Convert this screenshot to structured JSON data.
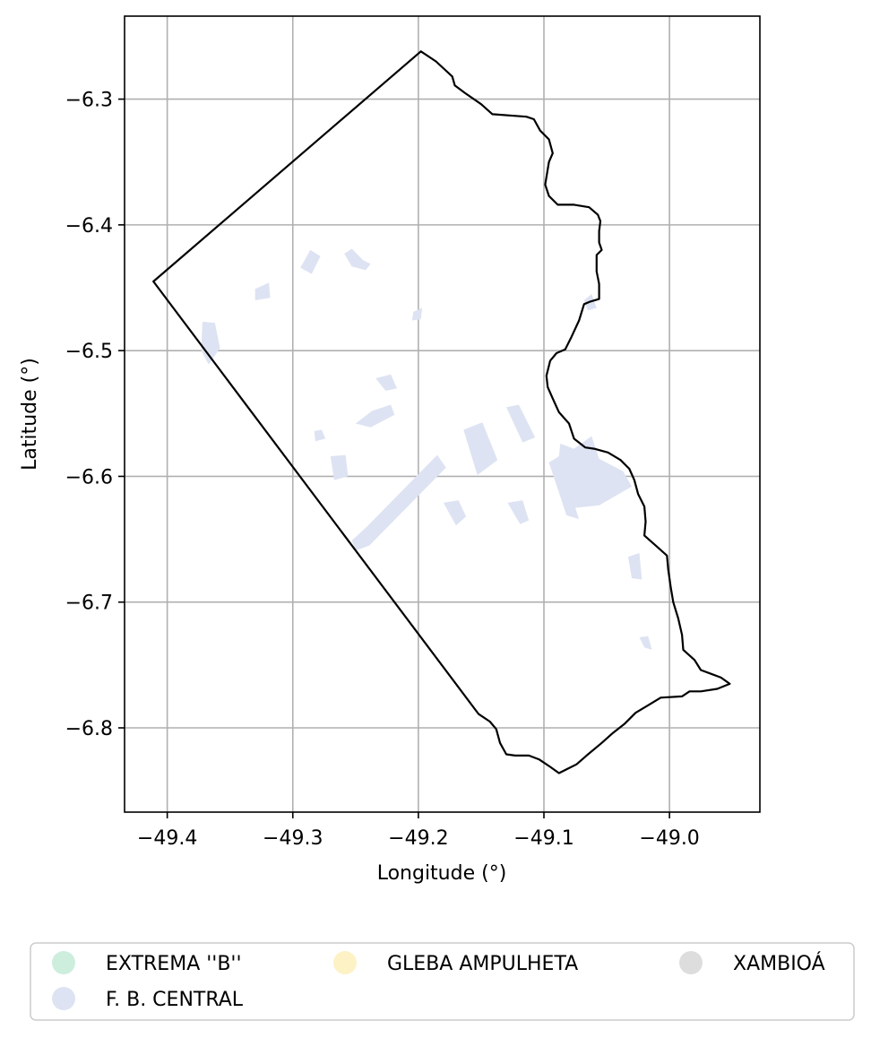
{
  "chart_data": {
    "type": "map",
    "xlabel": "Longitude (°)",
    "ylabel": "Latitude (°)",
    "xlim": [
      -49.434,
      -48.928
    ],
    "ylim": [
      -6.867,
      -6.234
    ],
    "grid": true,
    "x_ticks": [
      -49.4,
      -49.3,
      -49.2,
      -49.1,
      -49.0
    ],
    "x_tick_labels": [
      "−49.4",
      "−49.3",
      "−49.2",
      "−49.1",
      "−49.0"
    ],
    "y_ticks": [
      -6.3,
      -6.4,
      -6.5,
      -6.6,
      -6.7,
      -6.8
    ],
    "y_tick_labels": [
      "−6.3",
      "−6.4",
      "−6.5",
      "−6.6",
      "−6.7",
      "−6.8"
    ],
    "legend_position": "bottom",
    "legend": [
      {
        "label": "EXTREMA ''B''",
        "color": "#cdeedd"
      },
      {
        "label": "F. B. CENTRAL",
        "color": "#dde3f2"
      },
      {
        "label": "GLEBA AMPULHETA",
        "color": "#fdf2c6"
      },
      {
        "label": "XAMBIOÁ",
        "color": "#dddddd"
      }
    ],
    "boundary": {
      "color": "#000000",
      "points": [
        [
          -49.411,
          -6.445
        ],
        [
          -49.198,
          -6.262
        ],
        [
          -49.186,
          -6.27
        ],
        [
          -49.173,
          -6.282
        ],
        [
          -49.171,
          -6.289
        ],
        [
          -49.163,
          -6.295
        ],
        [
          -49.15,
          -6.304
        ],
        [
          -49.141,
          -6.312
        ],
        [
          -49.114,
          -6.314
        ],
        [
          -49.108,
          -6.316
        ],
        [
          -49.103,
          -6.325
        ],
        [
          -49.096,
          -6.332
        ],
        [
          -49.093,
          -6.343
        ],
        [
          -49.096,
          -6.35
        ],
        [
          -49.099,
          -6.368
        ],
        [
          -49.096,
          -6.377
        ],
        [
          -49.089,
          -6.384
        ],
        [
          -49.076,
          -6.384
        ],
        [
          -49.064,
          -6.386
        ],
        [
          -49.057,
          -6.392
        ],
        [
          -49.055,
          -6.397
        ],
        [
          -49.056,
          -6.405
        ],
        [
          -49.056,
          -6.414
        ],
        [
          -49.054,
          -6.42
        ],
        [
          -49.058,
          -6.424
        ],
        [
          -49.058,
          -6.437
        ],
        [
          -49.056,
          -6.447
        ],
        [
          -49.056,
          -6.459
        ],
        [
          -49.063,
          -6.461
        ],
        [
          -49.068,
          -6.463
        ],
        [
          -49.072,
          -6.476
        ],
        [
          -49.078,
          -6.489
        ],
        [
          -49.083,
          -6.499
        ],
        [
          -49.09,
          -6.502
        ],
        [
          -49.095,
          -6.508
        ],
        [
          -49.098,
          -6.52
        ],
        [
          -49.097,
          -6.529
        ],
        [
          -49.093,
          -6.538
        ],
        [
          -49.088,
          -6.549
        ],
        [
          -49.08,
          -6.558
        ],
        [
          -49.076,
          -6.57
        ],
        [
          -49.067,
          -6.577
        ],
        [
          -49.06,
          -6.578
        ],
        [
          -49.049,
          -6.581
        ],
        [
          -49.039,
          -6.587
        ],
        [
          -49.032,
          -6.594
        ],
        [
          -49.028,
          -6.603
        ],
        [
          -49.025,
          -6.614
        ],
        [
          -49.02,
          -6.624
        ],
        [
          -49.019,
          -6.636
        ],
        [
          -49.02,
          -6.647
        ],
        [
          -49.011,
          -6.655
        ],
        [
          -49.002,
          -6.663
        ],
        [
          -49.001,
          -6.674
        ],
        [
          -48.999,
          -6.688
        ],
        [
          -48.997,
          -6.7
        ],
        [
          -48.993,
          -6.713
        ],
        [
          -48.99,
          -6.726
        ],
        [
          -48.989,
          -6.738
        ],
        [
          -48.98,
          -6.746
        ],
        [
          -48.975,
          -6.754
        ],
        [
          -48.967,
          -6.757
        ],
        [
          -48.959,
          -6.76
        ],
        [
          -48.952,
          -6.765
        ],
        [
          -48.962,
          -6.769
        ],
        [
          -48.975,
          -6.771
        ],
        [
          -48.984,
          -6.771
        ],
        [
          -48.99,
          -6.775
        ],
        [
          -49.007,
          -6.776
        ],
        [
          -49.017,
          -6.782
        ],
        [
          -49.027,
          -6.788
        ],
        [
          -49.036,
          -6.797
        ],
        [
          -49.045,
          -6.804
        ],
        [
          -49.054,
          -6.812
        ],
        [
          -49.066,
          -6.822
        ],
        [
          -49.074,
          -6.829
        ],
        [
          -49.088,
          -6.836
        ],
        [
          -49.095,
          -6.831
        ],
        [
          -49.104,
          -6.825
        ],
        [
          -49.112,
          -6.822
        ],
        [
          -49.123,
          -6.822
        ],
        [
          -49.13,
          -6.821
        ],
        [
          -49.135,
          -6.812
        ],
        [
          -49.138,
          -6.801
        ],
        [
          -49.143,
          -6.795
        ],
        [
          -49.152,
          -6.789
        ],
        [
          -49.411,
          -6.445
        ]
      ]
    },
    "regions": {
      "category": "F. B. CENTRAL",
      "color": "#dde3f2",
      "polygons": [
        [
          [
            -49.372,
            -6.477
          ],
          [
            -49.362,
            -6.478
          ],
          [
            -49.358,
            -6.498
          ],
          [
            -49.367,
            -6.511
          ],
          [
            -49.373,
            -6.5
          ]
        ],
        [
          [
            -49.241,
            -6.64
          ],
          [
            -49.185,
            -6.583
          ],
          [
            -49.178,
            -6.593
          ],
          [
            -49.239,
            -6.655
          ],
          [
            -49.25,
            -6.659
          ],
          [
            -49.253,
            -6.651
          ]
        ],
        [
          [
            -49.164,
            -6.563
          ],
          [
            -49.149,
            -6.557
          ],
          [
            -49.137,
            -6.587
          ],
          [
            -49.153,
            -6.599
          ]
        ],
        [
          [
            -49.062,
            -6.568
          ],
          [
            -49.076,
            -6.578
          ],
          [
            -49.087,
            -6.574
          ],
          [
            -49.088,
            -6.584
          ],
          [
            -49.096,
            -6.589
          ],
          [
            -49.093,
            -6.598
          ],
          [
            -49.082,
            -6.631
          ],
          [
            -49.072,
            -6.634
          ],
          [
            -49.075,
            -6.625
          ],
          [
            -49.056,
            -6.623
          ],
          [
            -49.03,
            -6.608
          ],
          [
            -49.037,
            -6.596
          ],
          [
            -49.056,
            -6.586
          ]
        ],
        [
          [
            -49.13,
            -6.545
          ],
          [
            -49.12,
            -6.543
          ],
          [
            -49.107,
            -6.569
          ],
          [
            -49.117,
            -6.573
          ]
        ],
        [
          [
            -49.129,
            -6.621
          ],
          [
            -49.117,
            -6.619
          ],
          [
            -49.112,
            -6.635
          ],
          [
            -49.119,
            -6.638
          ]
        ],
        [
          [
            -49.18,
            -6.621
          ],
          [
            -49.168,
            -6.619
          ],
          [
            -49.162,
            -6.632
          ],
          [
            -49.17,
            -6.639
          ]
        ],
        [
          [
            -49.27,
            -6.584
          ],
          [
            -49.258,
            -6.583
          ],
          [
            -49.256,
            -6.6
          ],
          [
            -49.267,
            -6.603
          ]
        ],
        [
          [
            -49.25,
            -6.558
          ],
          [
            -49.237,
            -6.548
          ],
          [
            -49.222,
            -6.543
          ],
          [
            -49.219,
            -6.551
          ],
          [
            -49.238,
            -6.561
          ]
        ],
        [
          [
            -49.234,
            -6.522
          ],
          [
            -49.222,
            -6.519
          ],
          [
            -49.217,
            -6.53
          ],
          [
            -49.226,
            -6.532
          ]
        ],
        [
          [
            -49.294,
            -6.434
          ],
          [
            -49.286,
            -6.42
          ],
          [
            -49.278,
            -6.425
          ],
          [
            -49.285,
            -6.439
          ]
        ],
        [
          [
            -49.259,
            -6.423
          ],
          [
            -49.253,
            -6.419
          ],
          [
            -49.244,
            -6.428
          ],
          [
            -49.238,
            -6.431
          ],
          [
            -49.242,
            -6.436
          ],
          [
            -49.253,
            -6.433
          ]
        ],
        [
          [
            -49.033,
            -6.664
          ],
          [
            -49.024,
            -6.661
          ],
          [
            -49.022,
            -6.682
          ],
          [
            -49.03,
            -6.681
          ]
        ],
        [
          [
            -49.024,
            -6.728
          ],
          [
            -49.017,
            -6.727
          ],
          [
            -49.014,
            -6.738
          ],
          [
            -49.02,
            -6.736
          ]
        ],
        [
          [
            -49.204,
            -6.469
          ],
          [
            -49.197,
            -6.466
          ],
          [
            -49.198,
            -6.475
          ],
          [
            -49.205,
            -6.476
          ]
        ],
        [
          [
            -49.068,
            -6.46
          ],
          [
            -49.062,
            -6.455
          ],
          [
            -49.058,
            -6.466
          ],
          [
            -49.065,
            -6.468
          ]
        ],
        [
          [
            -49.33,
            -6.451
          ],
          [
            -49.319,
            -6.446
          ],
          [
            -49.318,
            -6.458
          ],
          [
            -49.33,
            -6.46
          ]
        ],
        [
          [
            -49.283,
            -6.564
          ],
          [
            -49.277,
            -6.563
          ],
          [
            -49.274,
            -6.57
          ],
          [
            -49.282,
            -6.572
          ]
        ],
        [
          [
            -49.072,
            -6.586
          ],
          [
            -49.066,
            -6.583
          ],
          [
            -49.067,
            -6.592
          ],
          [
            -49.074,
            -6.593
          ]
        ]
      ]
    }
  }
}
